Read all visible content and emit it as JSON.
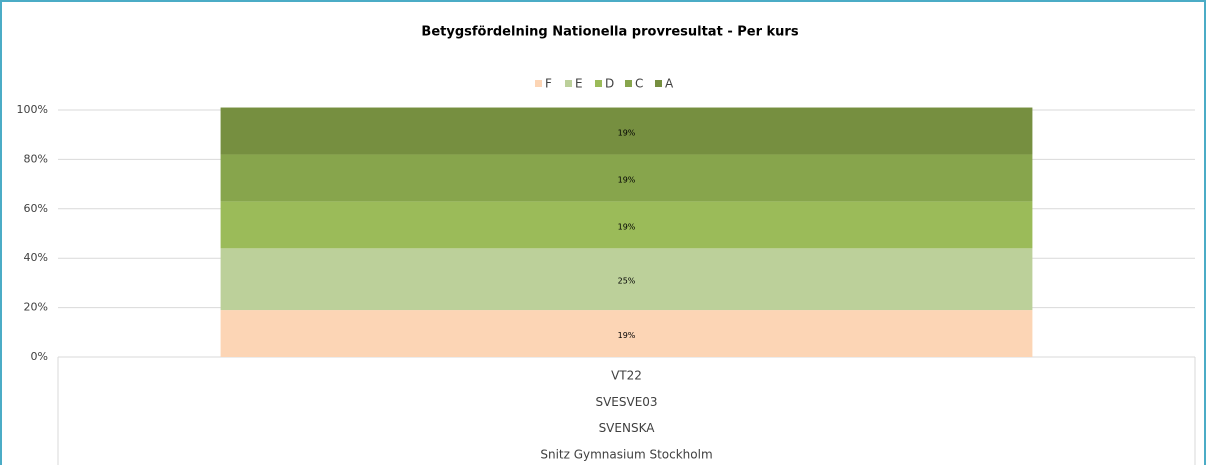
{
  "chart_data": {
    "type": "stacked_bar",
    "title": "Betygsfördelning Nationella provresultat - Per kurs",
    "categories": [
      [
        "VT22",
        "SVESVE03",
        "SVENSKA",
        "Snitz Gymnasium Stockholm"
      ]
    ],
    "series": [
      {
        "name": "F",
        "color": "#fcd5b5",
        "values": [
          19
        ],
        "value_labels": [
          "19%"
        ]
      },
      {
        "name": "E",
        "color": "#bcd09a",
        "values": [
          25
        ],
        "value_labels": [
          "25%"
        ]
      },
      {
        "name": "D",
        "color": "#9bbb59",
        "values": [
          19
        ],
        "value_labels": [
          "19%"
        ]
      },
      {
        "name": "C",
        "color": "#87a54c",
        "values": [
          19
        ],
        "value_labels": [
          "19%"
        ]
      },
      {
        "name": "A",
        "color": "#768f40",
        "values": [
          19
        ],
        "value_labels": [
          "19%"
        ]
      }
    ],
    "ylim": [
      0,
      100
    ],
    "yticks": [
      {
        "value": 0,
        "label": "0%"
      },
      {
        "value": 20,
        "label": "20%"
      },
      {
        "value": 40,
        "label": "40%"
      },
      {
        "value": 60,
        "label": "60%"
      },
      {
        "value": 80,
        "label": "80%"
      },
      {
        "value": 100,
        "label": "100%"
      }
    ],
    "grid": true,
    "legend": "top"
  }
}
